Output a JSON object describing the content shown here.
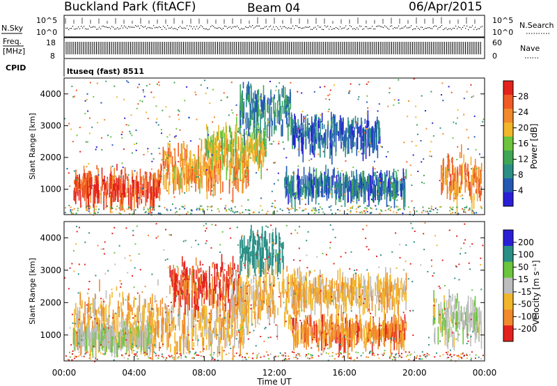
{
  "header": {
    "station": "Buckland Park (fitACF)",
    "beam": "Beam 04",
    "date": "06/Apr/2015"
  },
  "top_panels": {
    "nsky_label": "N.Sky",
    "nsky_ticks": [
      "10^5",
      "10^0"
    ],
    "nsearch_label": "N.Search",
    "nsearch_ticks": [
      "10^5",
      "10^0"
    ],
    "freq_label": "Freq.",
    "freq_unit": "[MHz]",
    "freq_ticks": [
      "18",
      "8"
    ],
    "nave_label": "Nave",
    "nave_ticks": [
      "60",
      "0"
    ],
    "cpid_label": "CPID",
    "cpid_value": "ltuseq (fast) 8511"
  },
  "chart_data": [
    {
      "type": "heatmap",
      "quantity": "Power",
      "ylabel": "Slant Range [km]",
      "xlabel": "",
      "ylim": [
        200,
        4500
      ],
      "yticks": [
        "1000",
        "2000",
        "3000",
        "4000"
      ],
      "colorbar_label": "Power [dB]",
      "colorbar_ticks": [
        "4",
        "8",
        "12",
        "16",
        "20",
        "24",
        "28"
      ],
      "colorscale": [
        "#2a1fd6",
        "#2458b4",
        "#2b8f86",
        "#3fa656",
        "#6cc53d",
        "#f2b62b",
        "#f08a2c",
        "#f05a25",
        "#e3211d"
      ],
      "bands": [
        {
          "t": [
            0.5,
            5.5
          ],
          "center": 1250,
          "halfwidth": 380,
          "value": 28
        },
        {
          "t": [
            5.5,
            10.5
          ],
          "center": 1800,
          "halfwidth": 500,
          "value": 22
        },
        {
          "t": [
            8.0,
            11.5
          ],
          "center": 2600,
          "halfwidth": 450,
          "value": 18
        },
        {
          "t": [
            10.0,
            13.0
          ],
          "center": 3700,
          "halfwidth": 600,
          "value": 9
        },
        {
          "t": [
            12.5,
            19.5
          ],
          "center": 1300,
          "halfwidth": 300,
          "value": 7
        },
        {
          "t": [
            13.0,
            18.0
          ],
          "center": 2900,
          "halfwidth": 400,
          "value": 6
        },
        {
          "t": [
            21.5,
            23.8
          ],
          "center": 1500,
          "halfwidth": 600,
          "value": 24
        }
      ]
    },
    {
      "type": "heatmap",
      "quantity": "Velocity",
      "ylabel": "Slant Range [km]",
      "xlabel": "Time UT",
      "ylim": [
        200,
        4500
      ],
      "yticks": [
        "1000",
        "2000",
        "3000",
        "4000"
      ],
      "x": [
        "00:00",
        "04:00",
        "08:00",
        "12:00",
        "16:00",
        "20:00",
        "00:00"
      ],
      "colorbar_label": "Velocity [m s⁻¹]",
      "colorbar_ticks": [
        "200",
        "100",
        "50",
        "15",
        "-15",
        "-50",
        "-100",
        "-200"
      ],
      "colorscale": [
        "#2a1fd6",
        "#2b8f86",
        "#6cc53d",
        "#bdbdbd",
        "#f2b62b",
        "#f08a2c",
        "#e3211d"
      ],
      "bands": [
        {
          "t": [
            0.5,
            10.5
          ],
          "center": 1500,
          "halfwidth": 700,
          "value": 0
        },
        {
          "t": [
            0.5,
            5.0
          ],
          "center": 1100,
          "halfwidth": 250,
          "value": 40
        },
        {
          "t": [
            6.0,
            10.0
          ],
          "center": 2700,
          "halfwidth": 500,
          "value": -60
        },
        {
          "t": [
            9.5,
            13.5
          ],
          "center": 2400,
          "halfwidth": 700,
          "value": 0
        },
        {
          "t": [
            10.0,
            12.5
          ],
          "center": 3800,
          "halfwidth": 500,
          "value": 150
        },
        {
          "t": [
            13.0,
            19.5
          ],
          "center": 1300,
          "halfwidth": 300,
          "value": -30
        },
        {
          "t": [
            13.0,
            19.5
          ],
          "center": 2500,
          "halfwidth": 400,
          "value": 0
        },
        {
          "t": [
            21.0,
            23.8
          ],
          "center": 1700,
          "halfwidth": 550,
          "value": 40
        }
      ]
    }
  ]
}
